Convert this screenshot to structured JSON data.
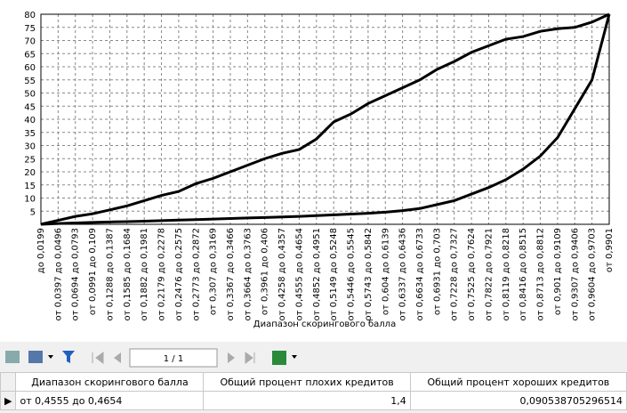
{
  "chart_data": {
    "type": "line",
    "x_label": "Диапазон скорингового балла",
    "categories": [
      "до 0,0199",
      "от 0,0397 до 0,0496",
      "от 0,0694 до 0,0793",
      "от 0,0991 до 0,109",
      "от 0,1288 до 0,1387",
      "от 0,1585 до 0,1684",
      "от 0,1882 до 0,1981",
      "от 0,2179 до 0,2278",
      "от 0,2476 до 0,2575",
      "от 0,2773 до 0,2872",
      "от 0,307 до 0,3169",
      "от 0,3367 до 0,3466",
      "от 0,3664 до 0,3763",
      "от 0,3961 до 0,406",
      "от 0,4258 до 0,4357",
      "от 0,4555 до 0,4654",
      "от 0,4852 до 0,4951",
      "от 0,5149 до 0,5248",
      "от 0,5446 до 0,5545",
      "от 0,5743 до 0,5842",
      "от 0,604 до 0,6139",
      "от 0,6337 до 0,6436",
      "от 0,6634 до 0,6733",
      "от 0,6931 до 0,703",
      "от 0,7228 до 0,7327",
      "от 0,7525 до 0,7624",
      "от 0,7822 до 0,7921",
      "от 0,8119 до 0,8218",
      "от 0,8416 до 0,8515",
      "от 0,8713 до 0,8812",
      "от 0,901 до 0,9109",
      "от 0,9307 до 0,9406",
      "от 0,9604 до 0,9703",
      "от 0,9901"
    ],
    "series": [
      {
        "color": "#000000",
        "values": [
          0,
          1.5,
          3,
          4,
          5.5,
          7,
          9,
          11,
          12.5,
          15.5,
          17.5,
          20,
          22.5,
          25,
          27,
          28.5,
          32.5,
          39,
          42,
          46,
          49,
          52,
          55,
          59,
          62,
          65.5,
          68,
          70.5,
          71.5,
          73.5,
          74.5,
          75,
          77,
          80
        ]
      },
      {
        "color": "#000000",
        "values": [
          0,
          0.3,
          0.5,
          0.7,
          0.9,
          1,
          1.2,
          1.4,
          1.6,
          1.8,
          2,
          2.2,
          2.4,
          2.6,
          2.8,
          3,
          3.3,
          3.6,
          3.9,
          4.2,
          4.6,
          5.2,
          6,
          7.5,
          9,
          11.5,
          14,
          17,
          21,
          26,
          33,
          44,
          55,
          80
        ]
      }
    ],
    "ylim": [
      0,
      80
    ],
    "yticks": [
      5,
      10,
      15,
      20,
      25,
      30,
      35,
      40,
      45,
      50,
      55,
      60,
      65,
      70,
      75,
      80
    ],
    "grid": true
  },
  "toolbar": {
    "page": "1 / 1"
  },
  "table": {
    "columns": [
      "Диапазон скорингового балла",
      "Общий процент плохих кредитов",
      "Общий процент хороших кредитов"
    ],
    "rows": [
      [
        "от 0,4555 до 0,4654",
        "1,4",
        "0,090538705296514"
      ]
    ]
  }
}
